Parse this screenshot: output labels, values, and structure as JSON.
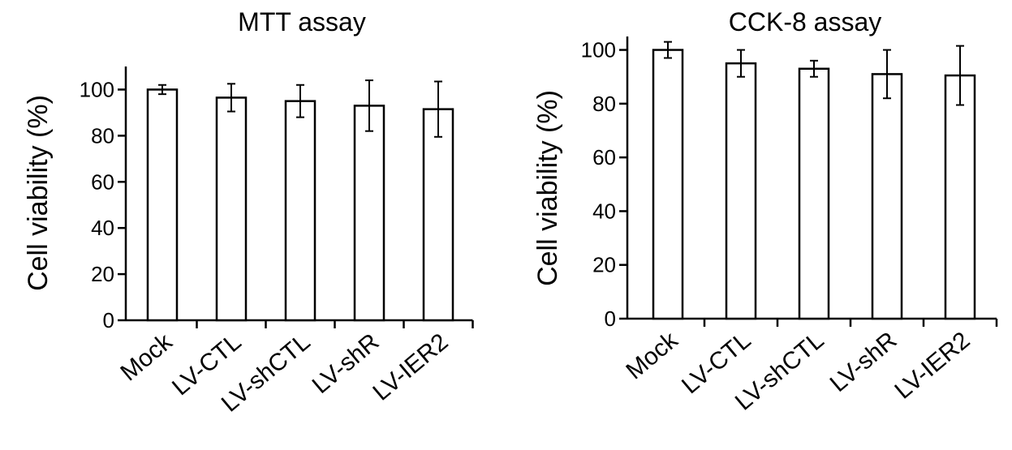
{
  "chart_data": [
    {
      "type": "bar",
      "title": "MTT assay",
      "xlabel": "",
      "ylabel": "Cell viability (%)",
      "ylim": [
        0,
        110
      ],
      "yticks": [
        0,
        20,
        40,
        60,
        80,
        100
      ],
      "categories": [
        "Mock",
        "LV-CTL",
        "LV-shCTL",
        "LV-shR",
        "LV-IER2"
      ],
      "values": [
        100,
        96.5,
        95,
        93,
        91.5
      ],
      "errors": [
        2,
        6,
        7,
        11,
        12
      ],
      "bar_color": "#ffffff",
      "grid": false,
      "legend": "none"
    },
    {
      "type": "bar",
      "title": "CCK-8 assay",
      "xlabel": "",
      "ylabel": "Cell viability (%)",
      "ylim": [
        0,
        105
      ],
      "yticks": [
        0,
        20,
        40,
        60,
        80,
        100
      ],
      "categories": [
        "Mock",
        "LV-CTL",
        "LV-shCTL",
        "LV-shR",
        "LV-IER2"
      ],
      "values": [
        100,
        95,
        93,
        91,
        90.5
      ],
      "errors": [
        3,
        5,
        3,
        9,
        11
      ],
      "bar_color": "#ffffff",
      "grid": false,
      "legend": "none"
    }
  ]
}
